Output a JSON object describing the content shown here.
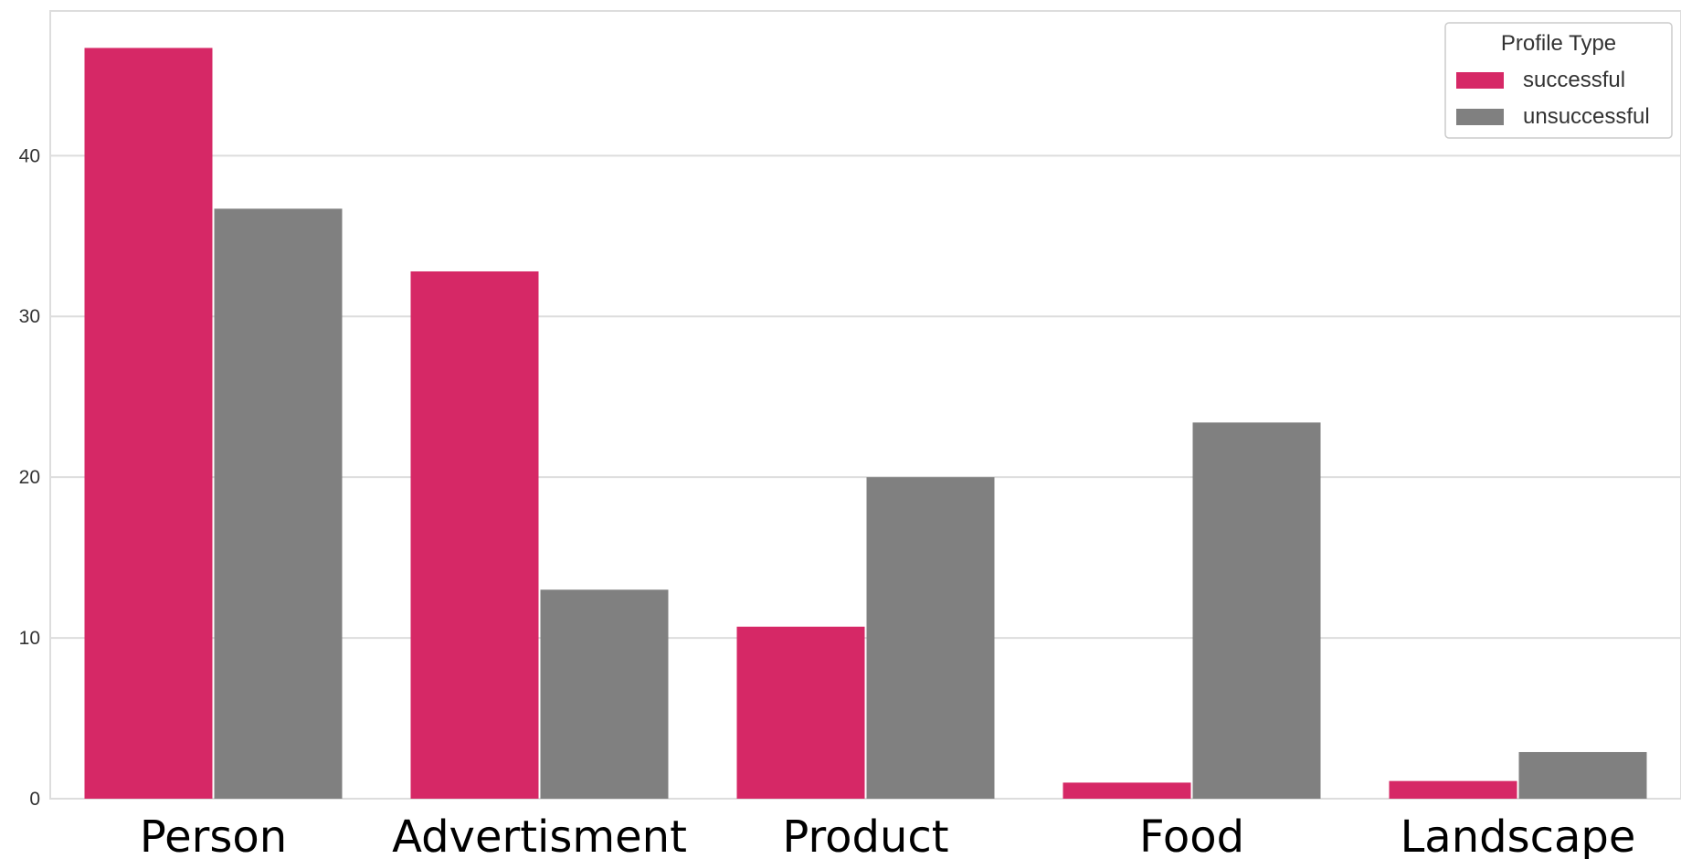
{
  "chart_data": {
    "type": "bar",
    "categories": [
      "Person",
      "Advertisment",
      "Product",
      "Food",
      "Landscape"
    ],
    "series": [
      {
        "name": "successful",
        "values": [
          46.7,
          32.8,
          10.7,
          1.0,
          1.1
        ],
        "color": "#d62866"
      },
      {
        "name": "unsuccessful",
        "values": [
          36.7,
          13.0,
          20.0,
          23.4,
          2.9
        ],
        "color": "#808080"
      }
    ],
    "ylim": [
      0,
      49
    ],
    "yticks": [
      0,
      10,
      20,
      30,
      40
    ],
    "grid": true,
    "legend": {
      "title": "Profile Type",
      "placement": "top-right"
    }
  }
}
